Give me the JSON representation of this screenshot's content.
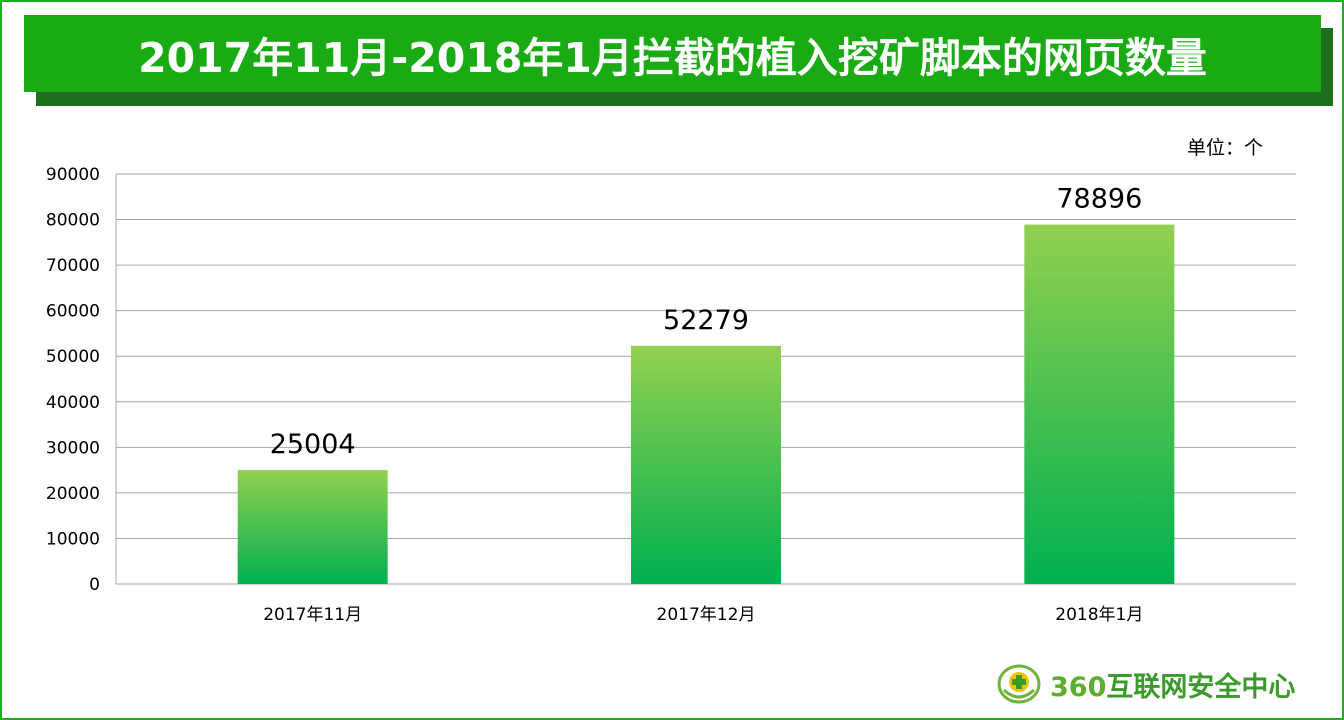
{
  "title": "2017年11月-2018年1月拦截的植入挖矿脚本的网页数量",
  "unit_label": "单位：个",
  "brand": {
    "number": "360",
    "name": "互联网安全中心"
  },
  "colors": {
    "title_bar": "#1aaa14",
    "title_shadow": "#1d6e1d",
    "bar_top": "#92d050",
    "bar_bottom": "#00b050",
    "grid": "#a6a6a6"
  },
  "chart_data": {
    "type": "bar",
    "categories": [
      "2017年11月",
      "2017年12月",
      "2018年1月"
    ],
    "values": [
      25004,
      52279,
      78896
    ],
    "data_labels": [
      "25004",
      "52279",
      "78896"
    ],
    "y_ticks": [
      "0",
      "10000",
      "20000",
      "30000",
      "40000",
      "50000",
      "60000",
      "70000",
      "80000",
      "90000"
    ],
    "ylim": [
      0,
      90000
    ],
    "grid": true,
    "legend": "none"
  }
}
